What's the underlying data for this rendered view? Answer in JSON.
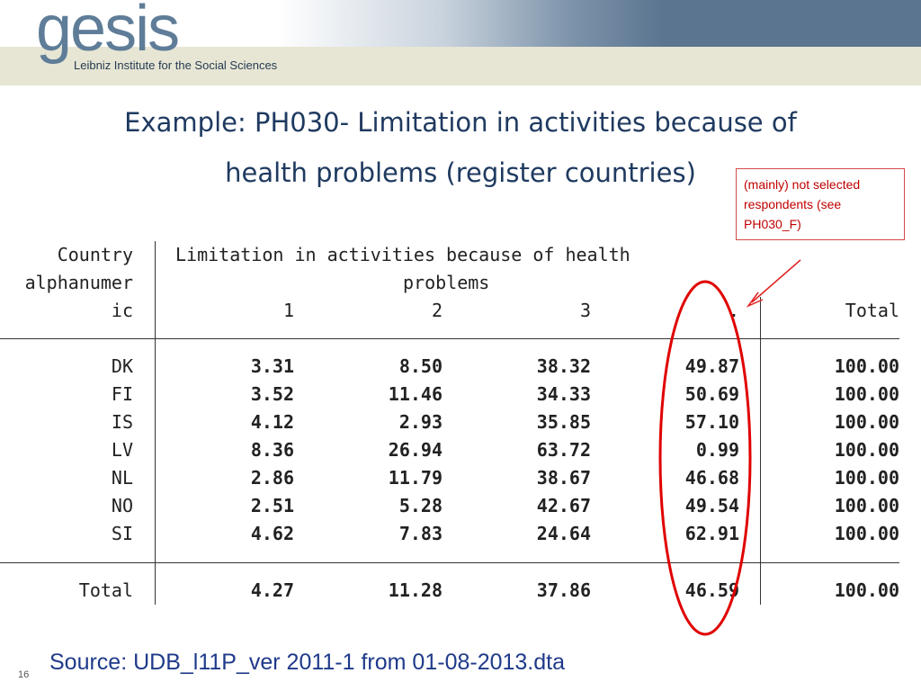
{
  "header": {
    "logo_word": "gesis",
    "logo_subtitle": "Leibniz Institute for the Social Sciences"
  },
  "title": {
    "line1": "Example: PH030- Limitation in activities because of",
    "line2": "health problems (register countries)"
  },
  "callout": {
    "line1": "(mainly) not selected",
    "line2": "respondents (see",
    "line3": "PH030_F)"
  },
  "table": {
    "row_header_lines": [
      "Country",
      "alphanumer",
      "ic"
    ],
    "group_header_line1": "Limitation in activities because of health",
    "group_header_line2": "problems",
    "columns": [
      "1",
      "2",
      "3",
      ".",
      "Total"
    ],
    "rows": [
      {
        "country": "DK",
        "values": [
          "3.31",
          "8.50",
          "38.32",
          "49.87",
          "100.00"
        ]
      },
      {
        "country": "FI",
        "values": [
          "3.52",
          "11.46",
          "34.33",
          "50.69",
          "100.00"
        ]
      },
      {
        "country": "IS",
        "values": [
          "4.12",
          "2.93",
          "35.85",
          "57.10",
          "100.00"
        ]
      },
      {
        "country": "LV",
        "values": [
          "8.36",
          "26.94",
          "63.72",
          "0.99",
          "100.00"
        ]
      },
      {
        "country": "NL",
        "values": [
          "2.86",
          "11.79",
          "38.67",
          "46.68",
          "100.00"
        ]
      },
      {
        "country": "NO",
        "values": [
          "2.51",
          "5.28",
          "42.67",
          "49.54",
          "100.00"
        ]
      },
      {
        "country": "SI",
        "values": [
          "4.62",
          "7.83",
          "24.64",
          "62.91",
          "100.00"
        ]
      }
    ],
    "total": {
      "country": "Total",
      "values": [
        "4.27",
        "11.28",
        "37.86",
        "46.59",
        "100.00"
      ]
    }
  },
  "annotation_colors": {
    "highlight": "#e00000",
    "arrow": "#e02020"
  },
  "source": "Source: UDB_l11P_ver 2011-1 from 01-08-2013.dta",
  "page_number": "16"
}
